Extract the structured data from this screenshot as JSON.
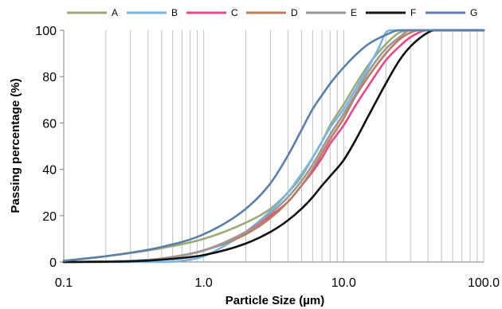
{
  "chart_data": {
    "type": "line",
    "xlabel": "Particle Size (µm)",
    "ylabel": "Passing percentage (%)",
    "x_scale": "log",
    "xlim": [
      0.1,
      100
    ],
    "ylim": [
      0,
      100
    ],
    "x_ticks": [
      "0.1",
      "1.0",
      "10.0",
      "100.0"
    ],
    "y_ticks": [
      "0",
      "20",
      "40",
      "60",
      "80",
      "100"
    ],
    "grid": "vertical-log",
    "legend_position": "top",
    "series": [
      {
        "name": "A",
        "color": "#9aaa78",
        "points": [
          [
            0.1,
            0.5
          ],
          [
            0.2,
            2.5
          ],
          [
            0.5,
            6
          ],
          [
            1,
            10
          ],
          [
            2,
            17
          ],
          [
            3,
            23
          ],
          [
            4,
            30
          ],
          [
            5,
            37
          ],
          [
            6,
            45
          ],
          [
            7,
            52
          ],
          [
            8,
            59
          ],
          [
            10,
            68
          ],
          [
            12,
            76
          ],
          [
            15,
            85
          ],
          [
            20,
            94
          ],
          [
            25,
            99
          ],
          [
            30,
            100
          ],
          [
            100,
            100
          ]
        ]
      },
      {
        "name": "B",
        "color": "#7ab4e0",
        "points": [
          [
            0.1,
            0
          ],
          [
            0.5,
            0
          ],
          [
            0.8,
            1
          ],
          [
            1,
            2.5
          ],
          [
            1.5,
            8
          ],
          [
            2,
            13
          ],
          [
            3,
            22
          ],
          [
            4,
            30
          ],
          [
            5,
            38
          ],
          [
            6,
            45
          ],
          [
            7,
            52
          ],
          [
            8,
            58
          ],
          [
            10,
            66
          ],
          [
            12,
            74
          ],
          [
            15,
            84
          ],
          [
            18,
            93
          ],
          [
            20,
            99
          ],
          [
            22,
            100
          ],
          [
            100,
            100
          ]
        ]
      },
      {
        "name": "C",
        "color": "#e8488a",
        "points": [
          [
            0.1,
            0
          ],
          [
            0.3,
            0.5
          ],
          [
            0.5,
            1.5
          ],
          [
            1,
            5
          ],
          [
            2,
            13
          ],
          [
            3,
            20
          ],
          [
            4,
            26
          ],
          [
            5,
            33
          ],
          [
            6,
            39
          ],
          [
            7,
            45
          ],
          [
            8,
            51
          ],
          [
            10,
            59
          ],
          [
            12,
            67
          ],
          [
            15,
            76
          ],
          [
            20,
            87
          ],
          [
            25,
            93
          ],
          [
            30,
            97
          ],
          [
            40,
            100
          ],
          [
            100,
            100
          ]
        ]
      },
      {
        "name": "D",
        "color": "#b57f60",
        "points": [
          [
            0.1,
            0
          ],
          [
            0.3,
            0.5
          ],
          [
            0.5,
            1.5
          ],
          [
            1,
            5
          ],
          [
            2,
            12
          ],
          [
            3,
            19
          ],
          [
            4,
            26
          ],
          [
            5,
            33
          ],
          [
            6,
            40
          ],
          [
            7,
            47
          ],
          [
            8,
            53
          ],
          [
            10,
            62
          ],
          [
            12,
            71
          ],
          [
            15,
            80
          ],
          [
            20,
            90
          ],
          [
            25,
            96
          ],
          [
            30,
            99
          ],
          [
            35,
            100
          ],
          [
            100,
            100
          ]
        ]
      },
      {
        "name": "E",
        "color": "#999999",
        "points": [
          [
            0.1,
            0
          ],
          [
            0.3,
            0.5
          ],
          [
            0.5,
            1.5
          ],
          [
            1,
            5
          ],
          [
            2,
            13
          ],
          [
            3,
            21
          ],
          [
            4,
            28
          ],
          [
            5,
            35
          ],
          [
            6,
            42
          ],
          [
            7,
            49
          ],
          [
            8,
            55
          ],
          [
            10,
            64
          ],
          [
            12,
            72
          ],
          [
            15,
            82
          ],
          [
            20,
            92
          ],
          [
            25,
            97
          ],
          [
            30,
            100
          ],
          [
            100,
            100
          ]
        ]
      },
      {
        "name": "F",
        "color": "#111111",
        "points": [
          [
            0.1,
            0
          ],
          [
            0.3,
            0.3
          ],
          [
            0.5,
            1
          ],
          [
            1,
            3
          ],
          [
            2,
            8
          ],
          [
            3,
            13
          ],
          [
            4,
            18
          ],
          [
            5,
            23
          ],
          [
            6,
            28
          ],
          [
            7,
            33
          ],
          [
            8,
            37
          ],
          [
            10,
            44
          ],
          [
            12,
            52
          ],
          [
            15,
            63
          ],
          [
            20,
            77
          ],
          [
            25,
            87
          ],
          [
            30,
            93
          ],
          [
            40,
            99
          ],
          [
            45,
            100
          ],
          [
            100,
            100
          ]
        ]
      },
      {
        "name": "G",
        "color": "#5a80a8",
        "points": [
          [
            0.1,
            0.5
          ],
          [
            0.2,
            2.5
          ],
          [
            0.5,
            6.5
          ],
          [
            1,
            12
          ],
          [
            2,
            23
          ],
          [
            3,
            34
          ],
          [
            4,
            46
          ],
          [
            5,
            57
          ],
          [
            6,
            66
          ],
          [
            7,
            72
          ],
          [
            8,
            77
          ],
          [
            10,
            84
          ],
          [
            12,
            89
          ],
          [
            15,
            94
          ],
          [
            20,
            98
          ],
          [
            25,
            100
          ],
          [
            100,
            100
          ]
        ]
      }
    ]
  }
}
